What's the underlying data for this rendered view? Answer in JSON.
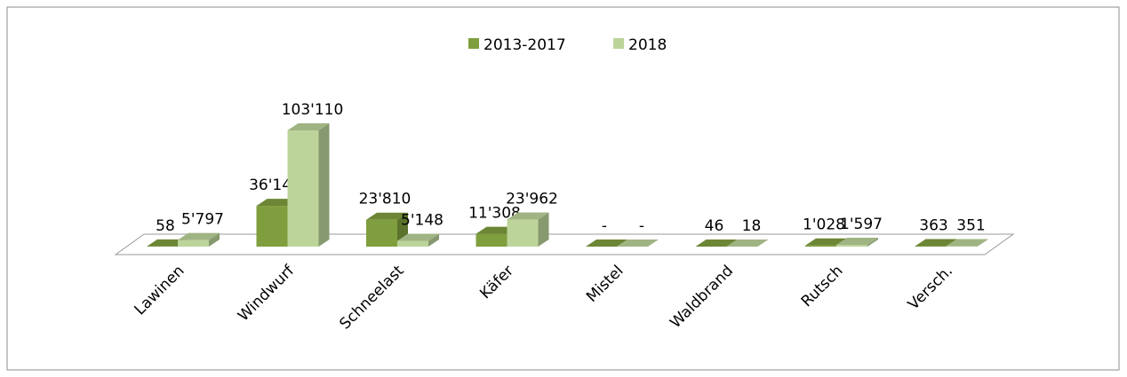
{
  "chart_data": {
    "type": "bar3d",
    "categories": [
      "Lawinen",
      "Windwurf",
      "Schneelast",
      "Käfer",
      "Mistel",
      "Waldbrand",
      "Rutsch",
      "Versch."
    ],
    "series": [
      {
        "name": "2013-2017",
        "color": "#7f9e3e",
        "values": [
          58,
          36146,
          23810,
          11308,
          0,
          46,
          1028,
          363
        ],
        "value_labels": [
          "58",
          "36'146",
          "23'810",
          "11'308",
          "-",
          "46",
          "1'028",
          "363"
        ]
      },
      {
        "name": "2018",
        "color": "#bcd49a",
        "values": [
          5797,
          103110,
          5148,
          23962,
          0,
          18,
          1597,
          351
        ],
        "value_labels": [
          "5'797",
          "103'110",
          "5'148",
          "23'962",
          "-",
          "18",
          "1'597",
          "351"
        ]
      }
    ],
    "legend": "top"
  }
}
